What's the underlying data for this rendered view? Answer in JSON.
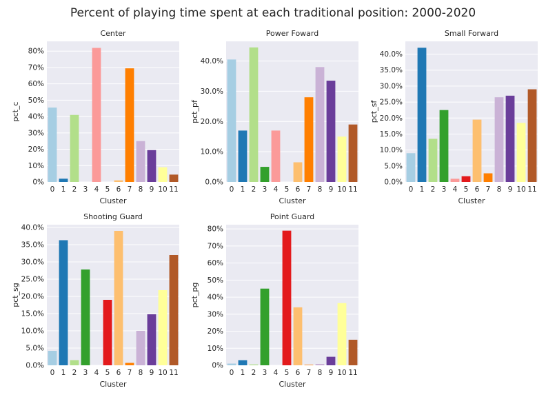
{
  "title": "Percent of playing time spent at each traditional position: 2000-2020",
  "palette": [
    "#a6cee3",
    "#1f78b4",
    "#b2df8a",
    "#33a02c",
    "#fb9a99",
    "#e31a1c",
    "#fdbf6f",
    "#ff7f00",
    "#cab2d6",
    "#6a3d9a",
    "#ffff99",
    "#b15928"
  ],
  "style": {
    "plot_background": "#eaeaf2",
    "grid_color": "#ffffff"
  },
  "chart_data": [
    {
      "type": "bar",
      "title": "Center",
      "xlabel": "Cluster",
      "ylabel": "pct_c",
      "categories": [
        "0",
        "1",
        "2",
        "3",
        "4",
        "5",
        "6",
        "7",
        "8",
        "9",
        "10",
        "11"
      ],
      "values": [
        45.5,
        2.0,
        41.0,
        0.0,
        82.0,
        0.0,
        1.0,
        69.5,
        25.0,
        19.5,
        9.0,
        4.5
      ],
      "ylim": [
        0,
        86
      ],
      "yticks": [
        0,
        10,
        20,
        30,
        40,
        50,
        60,
        70,
        80
      ],
      "ytick_labels": [
        "0%",
        "10%",
        "20%",
        "30%",
        "40%",
        "50%",
        "60%",
        "70%",
        "80%"
      ],
      "grid": true
    },
    {
      "type": "bar",
      "title": "Power Foward",
      "xlabel": "Cluster",
      "ylabel": "pct_pf",
      "categories": [
        "0",
        "1",
        "2",
        "3",
        "4",
        "5",
        "6",
        "7",
        "8",
        "9",
        "10",
        "11"
      ],
      "values": [
        40.5,
        17.0,
        44.5,
        5.0,
        17.0,
        0.0,
        6.5,
        28.0,
        38.0,
        33.5,
        15.0,
        19.0
      ],
      "ylim": [
        0,
        46.5
      ],
      "yticks": [
        0,
        10,
        20,
        30,
        40
      ],
      "ytick_labels": [
        "0.0%",
        "10.0%",
        "20.0%",
        "30.0%",
        "40.0%"
      ],
      "grid": true
    },
    {
      "type": "bar",
      "title": "Small Forward",
      "xlabel": "Cluster",
      "ylabel": "pct_sf",
      "categories": [
        "0",
        "1",
        "2",
        "3",
        "4",
        "5",
        "6",
        "7",
        "8",
        "9",
        "10",
        "11"
      ],
      "values": [
        9.0,
        42.0,
        13.5,
        22.5,
        1.0,
        1.8,
        19.5,
        2.7,
        26.5,
        27.0,
        18.5,
        29.0
      ],
      "ylim": [
        0,
        44
      ],
      "yticks": [
        0,
        5,
        10,
        15,
        20,
        25,
        30,
        35,
        40
      ],
      "ytick_labels": [
        "0.0%",
        "5.0%",
        "10.0%",
        "15.0%",
        "20.0%",
        "25.0%",
        "30.0%",
        "35.0%",
        "40.0%"
      ],
      "grid": true
    },
    {
      "type": "bar",
      "title": "Shooting Guard",
      "xlabel": "Cluster",
      "ylabel": "pct_sg",
      "categories": [
        "0",
        "1",
        "2",
        "3",
        "4",
        "5",
        "6",
        "7",
        "8",
        "9",
        "10",
        "11"
      ],
      "values": [
        4.2,
        36.3,
        1.5,
        27.8,
        0.0,
        19.0,
        39.0,
        0.7,
        10.0,
        14.8,
        21.8,
        32.0
      ],
      "ylim": [
        0,
        40.8
      ],
      "yticks": [
        0,
        5,
        10,
        15,
        20,
        25,
        30,
        35,
        40
      ],
      "ytick_labels": [
        "0.0%",
        "5.0%",
        "10.0%",
        "15.0%",
        "20.0%",
        "25.0%",
        "30.0%",
        "35.0%",
        "40.0%"
      ],
      "grid": true
    },
    {
      "type": "bar",
      "title": "Point Guard",
      "xlabel": "Cluster",
      "ylabel": "pct_pg",
      "categories": [
        "0",
        "1",
        "2",
        "3",
        "4",
        "5",
        "6",
        "7",
        "8",
        "9",
        "10",
        "11"
      ],
      "values": [
        1.0,
        3.0,
        0.5,
        45.0,
        0.0,
        79.0,
        34.0,
        0.3,
        0.8,
        5.0,
        36.5,
        15.0
      ],
      "ylim": [
        0,
        82.5
      ],
      "yticks": [
        0,
        10,
        20,
        30,
        40,
        50,
        60,
        70,
        80
      ],
      "ytick_labels": [
        "0%",
        "10%",
        "20%",
        "30%",
        "40%",
        "50%",
        "60%",
        "70%",
        "80%"
      ],
      "grid": true
    }
  ]
}
